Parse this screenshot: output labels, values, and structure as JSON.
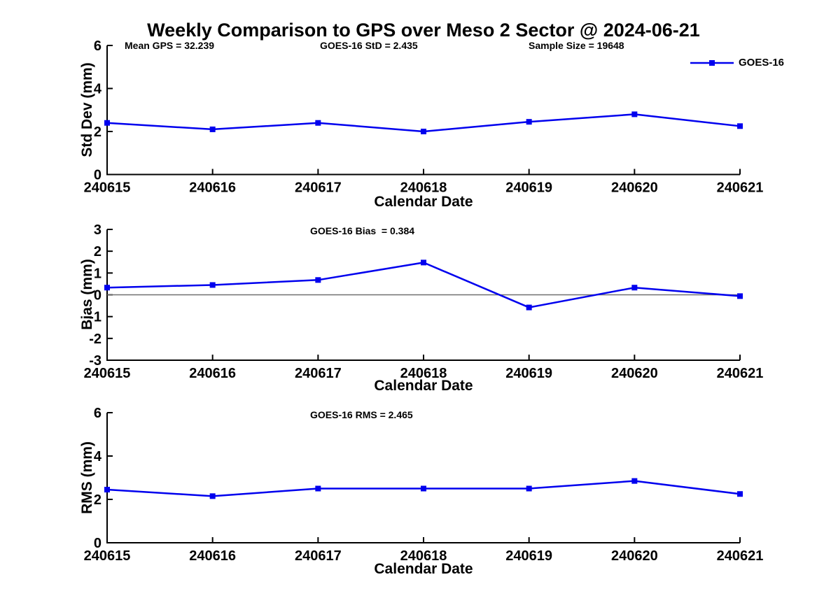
{
  "title": "Weekly Comparison to GPS over Meso 2 Sector @ 2024-06-21",
  "legend": {
    "label": "GOES-16"
  },
  "colors": {
    "line": "#0000ee",
    "zero_line": "#707070",
    "axis": "#000000",
    "text": "#000000",
    "background": "#ffffff"
  },
  "chart_data": [
    {
      "type": "line",
      "categories": [
        "240615",
        "240616",
        "240617",
        "240618",
        "240619",
        "240620",
        "240621"
      ],
      "series": [
        {
          "name": "GOES-16",
          "values": [
            2.4,
            2.1,
            2.4,
            2.0,
            2.45,
            2.8,
            2.25
          ]
        }
      ],
      "xlabel": "Calendar Date",
      "ylabel": "Std Dev (mm)",
      "ylim": [
        0,
        6
      ],
      "yticks": [
        0,
        2,
        4,
        6
      ],
      "grid": false,
      "zero_line": false,
      "legend_position": "top-right",
      "annotations": [
        "Mean GPS = 32.239",
        "GOES-16 StD = 2.435",
        "Sample Size = 19648"
      ]
    },
    {
      "type": "line",
      "categories": [
        "240615",
        "240616",
        "240617",
        "240618",
        "240619",
        "240620",
        "240621"
      ],
      "series": [
        {
          "name": "GOES-16",
          "values": [
            0.33,
            0.45,
            0.68,
            1.48,
            -0.58,
            0.33,
            -0.06
          ]
        }
      ],
      "xlabel": "Calendar Date",
      "ylabel": "Bias (mm)",
      "ylim": [
        -3,
        3
      ],
      "yticks": [
        -3,
        -2,
        -1,
        0,
        1,
        2,
        3
      ],
      "grid": false,
      "zero_line": true,
      "annotations": [
        "GOES-16 Bias  = 0.384"
      ]
    },
    {
      "type": "line",
      "categories": [
        "240615",
        "240616",
        "240617",
        "240618",
        "240619",
        "240620",
        "240621"
      ],
      "series": [
        {
          "name": "GOES-16",
          "values": [
            2.45,
            2.15,
            2.5,
            2.5,
            2.5,
            2.85,
            2.25
          ]
        }
      ],
      "xlabel": "Calendar Date",
      "ylabel": "RMS (mm)",
      "ylim": [
        0,
        6
      ],
      "yticks": [
        0,
        2,
        4,
        6
      ],
      "grid": false,
      "zero_line": false,
      "annotations": [
        "GOES-16 RMS = 2.465"
      ]
    }
  ]
}
